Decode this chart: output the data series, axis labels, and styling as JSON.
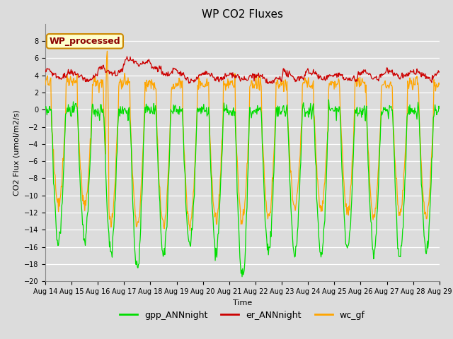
{
  "title": "WP CO2 Fluxes",
  "xlabel": "Time",
  "ylabel_display": "CO2 Flux (umol/m2/s)",
  "ylim": [
    -20,
    10
  ],
  "yticks": [
    -20,
    -18,
    -16,
    -14,
    -12,
    -10,
    -8,
    -6,
    -4,
    -2,
    0,
    2,
    4,
    6,
    8
  ],
  "xtick_labels": [
    "Aug 14",
    "Aug 15",
    "Aug 16",
    "Aug 17",
    "Aug 18",
    "Aug 19",
    "Aug 20",
    "Aug 21",
    "Aug 22",
    "Aug 23",
    "Aug 24",
    "Aug 25",
    "Aug 26",
    "Aug 27",
    "Aug 28",
    "Aug 29"
  ],
  "color_gpp": "#00DD00",
  "color_er": "#CC0000",
  "color_wc": "#FFA500",
  "legend_label_gpp": "gpp_ANNnight",
  "legend_label_er": "er_ANNnight",
  "legend_label_wc": "wc_gf",
  "annotation_text": "WP_processed",
  "annotation_color": "#8B0000",
  "annotation_bg": "#FFFFCC",
  "annotation_border": "#CC8800",
  "bg_color": "#DCDCDC",
  "n_days": 15,
  "points_per_day": 48,
  "gpp_amp_map": [
    -15.5,
    -15.0,
    -16.5,
    -18.5,
    -17.0,
    -16.0,
    -16.5,
    -19.5,
    -16.5,
    -17.0,
    -17.0,
    -16.5,
    -16.5,
    -17.0,
    -16.5
  ],
  "wc_amp_map": [
    -11.0,
    -11.0,
    -13.0,
    -13.5,
    -13.5,
    -13.5,
    -13.0,
    -13.0,
    -12.5,
    -11.5,
    -11.5,
    -12.0,
    -12.5,
    -12.0,
    -12.5
  ],
  "er_base_map": [
    4.2,
    3.8,
    4.5,
    5.5,
    4.5,
    3.8,
    3.8,
    3.8,
    3.5,
    4.0,
    4.0,
    3.8,
    4.0,
    4.2,
    4.0
  ],
  "title_fontsize": 11,
  "tick_fontsize": 7,
  "legend_fontsize": 9,
  "ylabel_fontsize": 8,
  "xlabel_fontsize": 8
}
